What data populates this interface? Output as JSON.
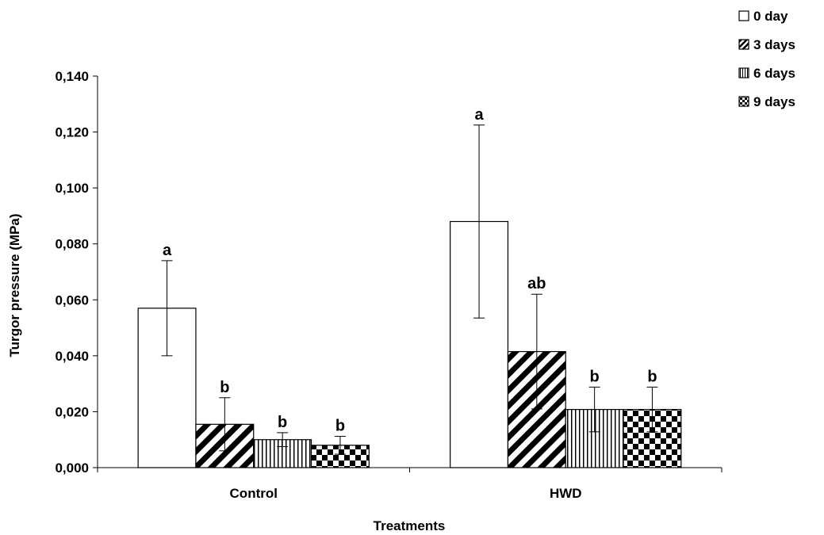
{
  "chart_data": {
    "type": "bar",
    "title": "",
    "xlabel": "Treatments",
    "ylabel": "Turgor pressure (MPa)",
    "categories": [
      "Control",
      "HWD"
    ],
    "ylim": [
      0,
      0.14
    ],
    "yticks": [
      0,
      0.02,
      0.04,
      0.06,
      0.08,
      0.1,
      0.12,
      0.14
    ],
    "ytick_labels": [
      "0,000",
      "0,020",
      "0,040",
      "0,060",
      "0,080",
      "0,100",
      "0,120",
      "0,140"
    ],
    "legend_position": "top-right",
    "grid": false,
    "series": [
      {
        "name": "0 day",
        "pattern": "none",
        "values": [
          0.057,
          0.088
        ],
        "errors": [
          0.017,
          0.0345
        ],
        "letters": [
          "a",
          "a"
        ]
      },
      {
        "name": "3 days",
        "pattern": "diagonal",
        "values": [
          0.0155,
          0.0415
        ],
        "errors": [
          0.0095,
          0.0205
        ],
        "letters": [
          "b",
          "ab"
        ]
      },
      {
        "name": "6 days",
        "pattern": "vertical",
        "values": [
          0.01,
          0.0208
        ],
        "errors": [
          0.0025,
          0.008
        ],
        "letters": [
          "b",
          "b"
        ]
      },
      {
        "name": "9 days",
        "pattern": "checker",
        "values": [
          0.008,
          0.0208
        ],
        "errors": [
          0.0032,
          0.008
        ],
        "letters": [
          "b",
          "b"
        ]
      }
    ]
  }
}
